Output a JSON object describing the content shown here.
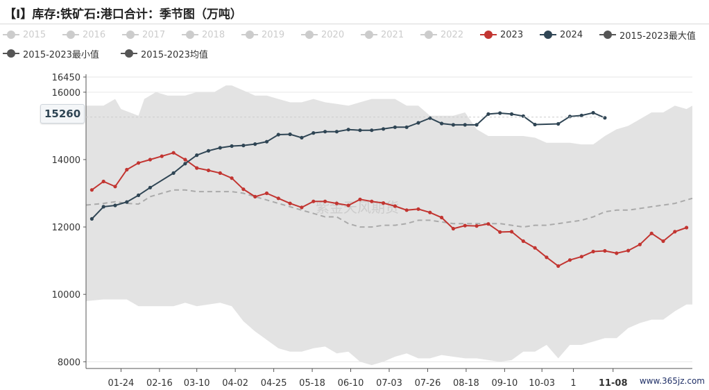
{
  "title": "【I】库存:铁矿石:港口合计：季节图（万吨）",
  "watermark": "www.365jz.com",
  "chart_watermark": "紫金天风期货",
  "colors": {
    "band": "#e3e3e3",
    "avg_line": "#aaaaaa",
    "series_2023": "#c23531",
    "series_2024": "#2f4554",
    "inactive": "#cccccc",
    "stat": "#555555"
  },
  "legend": [
    {
      "label": "2015",
      "active": false
    },
    {
      "label": "2016",
      "active": false
    },
    {
      "label": "2017",
      "active": false
    },
    {
      "label": "2018",
      "active": false
    },
    {
      "label": "2019",
      "active": false
    },
    {
      "label": "2020",
      "active": false
    },
    {
      "label": "2021",
      "active": false
    },
    {
      "label": "2022",
      "active": false
    },
    {
      "label": "2023",
      "active": true,
      "color": "#c23531"
    },
    {
      "label": "2024",
      "active": true,
      "color": "#2f4554"
    },
    {
      "label": "2015-2023最大值",
      "active": true,
      "color": "#555555"
    },
    {
      "label": "2015-2023最小值",
      "active": true,
      "color": "#555555"
    },
    {
      "label": "2015-2023均值",
      "active": true,
      "color": "#555555"
    }
  ],
  "axis_pointer": {
    "label": "15260",
    "x_label": "11-08"
  },
  "chart_data": {
    "type": "line",
    "y_ticks": [
      "16450",
      "16000",
      "14000",
      "12000",
      "10000",
      "8000"
    ],
    "y_tick_values": [
      16450,
      16000,
      14000,
      12000,
      10000,
      8000
    ],
    "ylim": [
      7800,
      16450
    ],
    "x_range": [
      0,
      52
    ],
    "x_ticks": [
      {
        "label": "01-24",
        "x": 3
      },
      {
        "label": "02-16",
        "x": 6.3
      },
      {
        "label": "03-10",
        "x": 9.5
      },
      {
        "label": "04-02",
        "x": 12.8
      },
      {
        "label": "04-25",
        "x": 16.1
      },
      {
        "label": "05-18",
        "x": 19.4
      },
      {
        "label": "06-10",
        "x": 22.7
      },
      {
        "label": "07-03",
        "x": 26
      },
      {
        "label": "07-26",
        "x": 29.3
      },
      {
        "label": "08-18",
        "x": 32.6
      },
      {
        "label": "09-10",
        "x": 35.9
      },
      {
        "label": "10-03",
        "x": 39.1
      },
      {
        "label": "1",
        "x": 41.8
      },
      {
        "label": "11-08",
        "x": 45.2,
        "highlight": true
      }
    ],
    "series": [
      {
        "name": "2023",
        "x": [
          0.5,
          1.5,
          2.5,
          3.5,
          4.5,
          5.5,
          6.5,
          7.5,
          8.5,
          9.5,
          10.5,
          11.5,
          12.5,
          13.5,
          14.5,
          15.5,
          16.5,
          17.5,
          18.5,
          19.5,
          20.5,
          21.5,
          22.5,
          23.5,
          24.5,
          25.5,
          26.5,
          27.5,
          28.5,
          29.5,
          30.5,
          31.5,
          32.5,
          33.5,
          34.5,
          35.5,
          36.5,
          37.5,
          38.5,
          39.5,
          40.5,
          41.5,
          42.5,
          43.5,
          44.5,
          45.5,
          46.5,
          47.5,
          48.5,
          49.5,
          50.5,
          51.5
        ],
        "values": [
          13100,
          13350,
          13200,
          13700,
          13900,
          14000,
          14100,
          14200,
          14000,
          13750,
          13680,
          13600,
          13450,
          13120,
          12900,
          13000,
          12850,
          12700,
          12580,
          12760,
          12760,
          12700,
          12640,
          12820,
          12760,
          12710,
          12620,
          12500,
          12530,
          12430,
          12280,
          11950,
          12040,
          12030,
          12090,
          11850,
          11860,
          11580,
          11380,
          11100,
          10840,
          11020,
          11120,
          11270,
          11290,
          11220,
          11300,
          11480,
          11810,
          11580,
          11860,
          11980
        ]
      },
      {
        "name": "2024",
        "x": [
          0.5,
          1.5,
          2.5,
          3.5,
          4.5,
          5.5,
          7.5,
          8.5,
          9.5,
          10.5,
          11.5,
          12.5,
          13.5,
          14.5,
          15.5,
          16.5,
          17.5,
          18.5,
          19.5,
          20.5,
          21.5,
          22.5,
          23.5,
          24.5,
          25.5,
          26.5,
          27.5,
          28.5,
          29.5,
          30.5,
          31.5,
          32.5,
          33.5,
          34.5,
          35.5,
          36.5,
          37.5,
          38.5,
          40.5,
          41.5,
          42.5,
          43.5,
          44.5
        ],
        "values": [
          12240,
          12600,
          12640,
          12740,
          12940,
          13170,
          13600,
          13880,
          14130,
          14260,
          14350,
          14400,
          14420,
          14460,
          14530,
          14740,
          14750,
          14650,
          14790,
          14830,
          14830,
          14890,
          14870,
          14870,
          14910,
          14960,
          14960,
          15090,
          15230,
          15070,
          15030,
          15030,
          15030,
          15350,
          15380,
          15350,
          15290,
          15040,
          15060,
          15280,
          15310,
          15390,
          15240
        ]
      },
      {
        "name": "2015-2023最大值",
        "x": [
          0,
          1.5,
          2.5,
          3,
          4.5,
          5,
          6,
          7,
          7.5,
          8.5,
          9.5,
          11,
          12,
          12.5,
          13.5,
          14.5,
          15.5,
          16.5,
          17.5,
          18.5,
          19.5,
          20.5,
          21.5,
          22.5,
          23.5,
          24.5,
          25.5,
          26.5,
          27.5,
          28.5,
          29.5,
          30.5,
          31.5,
          32.5,
          33.5,
          34.5,
          35.5,
          36.5,
          37.5,
          38.5,
          39.5,
          40.5,
          41.5,
          42.5,
          43.5,
          44.5,
          45.5,
          46.5,
          47.5,
          48.5,
          49.5,
          50.5,
          51.5,
          52
        ],
        "values": [
          15600,
          15600,
          15800,
          15500,
          15300,
          15800,
          16000,
          15900,
          15900,
          15900,
          16000,
          16000,
          16200,
          16200,
          16050,
          15900,
          15900,
          15800,
          15700,
          15700,
          15800,
          15700,
          15650,
          15600,
          15700,
          15800,
          15800,
          15800,
          15600,
          15600,
          15300,
          15300,
          15300,
          15400,
          14900,
          14700,
          14700,
          14700,
          14700,
          14650,
          14500,
          14500,
          14500,
          14450,
          14450,
          14700,
          14900,
          15000,
          15200,
          15400,
          15400,
          15600,
          15500,
          15600
        ]
      },
      {
        "name": "2015-2023最小值",
        "x": [
          0,
          1.5,
          2.5,
          3.5,
          4.5,
          5.5,
          6.5,
          7.5,
          8.5,
          9.5,
          10.5,
          11.5,
          12.5,
          13.5,
          14.5,
          15.5,
          16.5,
          17.5,
          18.5,
          19.5,
          20.5,
          21.5,
          22.5,
          23.5,
          24.5,
          25.5,
          26.5,
          27.5,
          28.5,
          29.5,
          30.5,
          31.5,
          32.5,
          33.5,
          34.5,
          35.5,
          36.5,
          37.5,
          38.5,
          39.5,
          40.5,
          41.5,
          42.5,
          43.5,
          44.5,
          45.5,
          46.5,
          47.5,
          48.5,
          49.5,
          50.5,
          51.5,
          52
        ],
        "values": [
          9800,
          9850,
          9850,
          9850,
          9650,
          9650,
          9650,
          9650,
          9750,
          9650,
          9700,
          9750,
          9650,
          9200,
          8900,
          8650,
          8400,
          8300,
          8300,
          8400,
          8450,
          8250,
          8300,
          8000,
          7900,
          8000,
          8150,
          8250,
          8100,
          8100,
          8200,
          8150,
          8100,
          8100,
          8050,
          8000,
          8050,
          8300,
          8300,
          8500,
          8100,
          8500,
          8500,
          8600,
          8700,
          8700,
          9000,
          9150,
          9250,
          9250,
          9500,
          9700,
          9700
        ]
      },
      {
        "name": "2015-2023均值",
        "x": [
          0,
          1.5,
          2.5,
          3.5,
          4.5,
          5.5,
          6.5,
          7.5,
          8.5,
          9.5,
          10.5,
          11.5,
          12.5,
          13.5,
          14.5,
          15.5,
          16.5,
          17.5,
          18.5,
          19.5,
          20.5,
          21.5,
          22.5,
          23.5,
          24.5,
          25.5,
          26.5,
          27.5,
          28.5,
          29.5,
          30.5,
          31.5,
          32.5,
          33.5,
          34.5,
          35.5,
          36.5,
          37.5,
          38.5,
          39.5,
          40.5,
          41.5,
          42.5,
          43.5,
          44.5,
          45.5,
          46.5,
          47.5,
          48.5,
          49.5,
          50.5,
          51.5,
          52
        ],
        "values": [
          12650,
          12700,
          12750,
          12700,
          12680,
          12900,
          13000,
          13100,
          13100,
          13050,
          13050,
          13050,
          13050,
          13000,
          12900,
          12800,
          12700,
          12600,
          12500,
          12400,
          12300,
          12300,
          12100,
          12000,
          12000,
          12050,
          12050,
          12100,
          12200,
          12200,
          12150,
          12100,
          12100,
          12100,
          12100,
          12100,
          12050,
          12000,
          12050,
          12050,
          12100,
          12150,
          12200,
          12300,
          12450,
          12500,
          12500,
          12550,
          12600,
          12650,
          12700,
          12800,
          12850
        ]
      }
    ]
  }
}
